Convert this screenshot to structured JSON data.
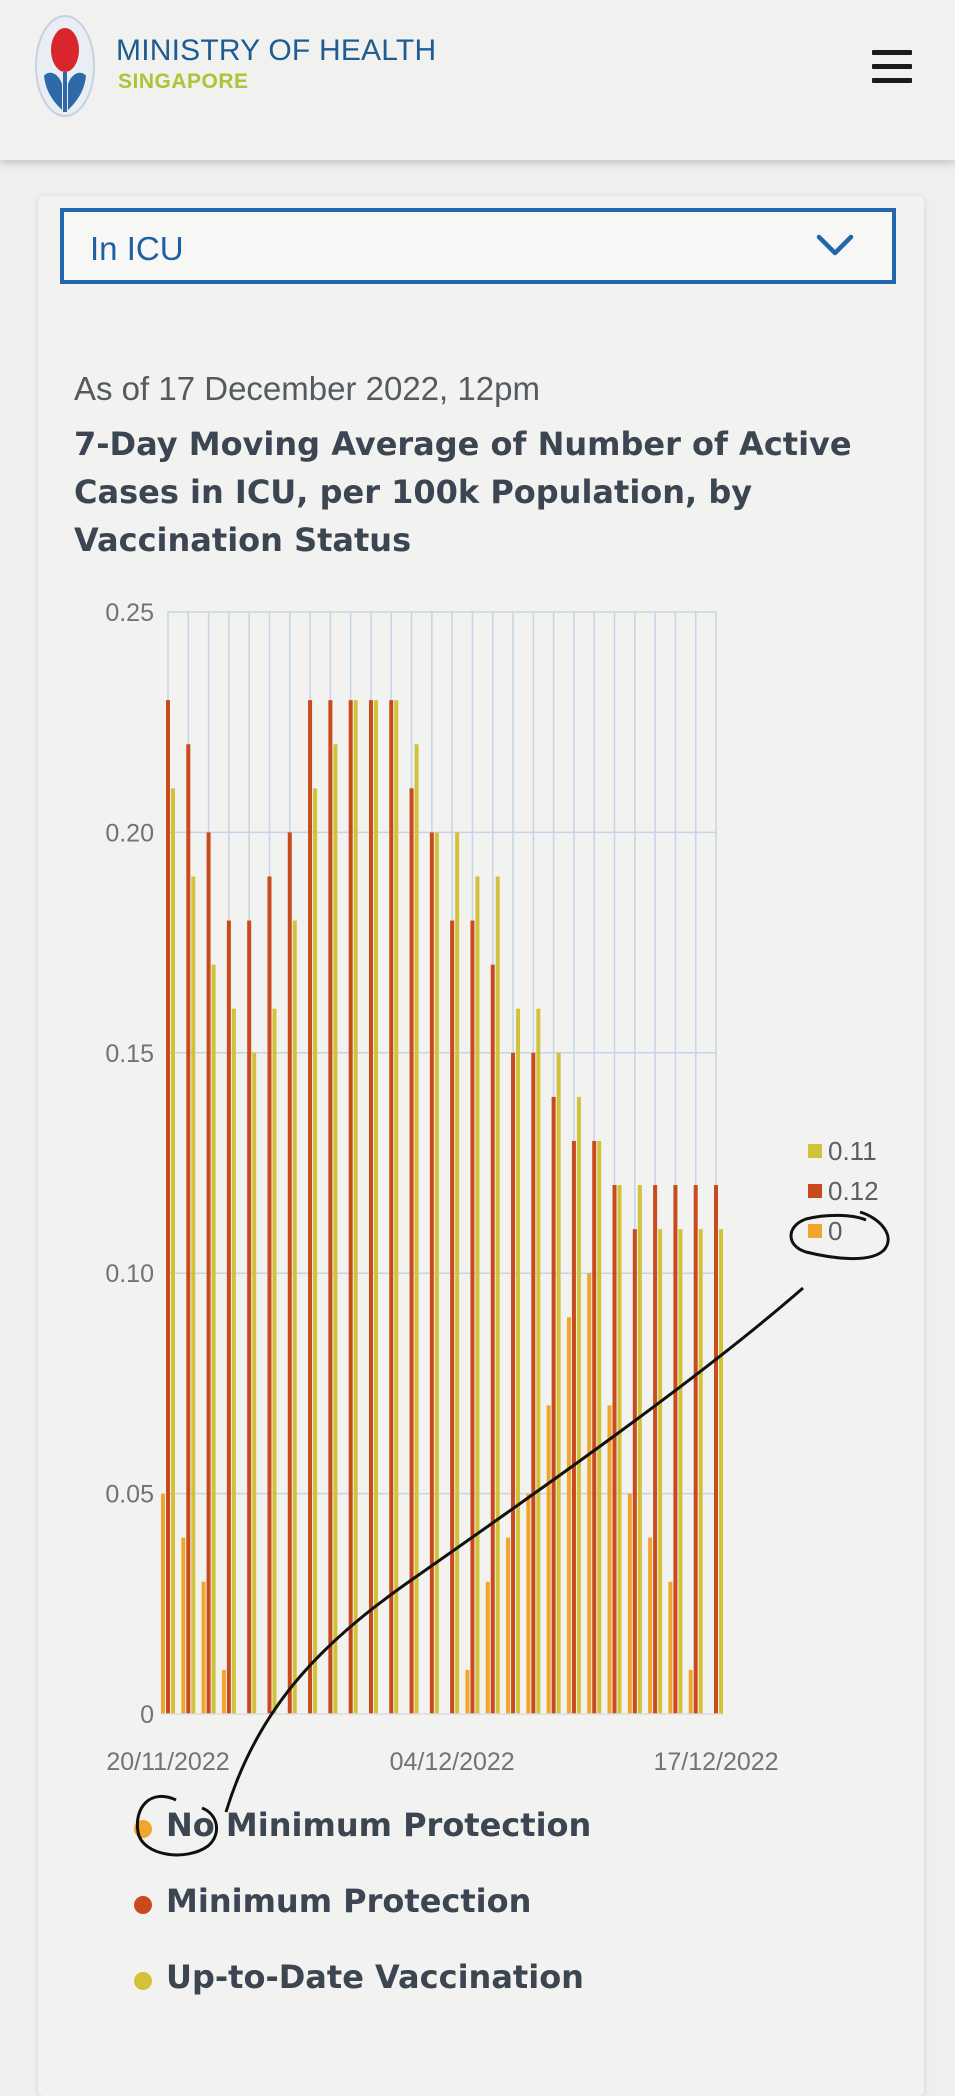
{
  "header": {
    "org_name": "MINISTRY OF HEALTH",
    "org_sub": "SINGAPORE",
    "menu_icon": "hamburger-menu-icon"
  },
  "selector": {
    "value": "In ICU",
    "icon": "chevron-down-icon"
  },
  "content": {
    "as_of": "As of 17 December 2022, 12pm"
  },
  "colors": {
    "brand_blue": "#1e5c92",
    "brand_green": "#a9c639",
    "no_min": "#f0a52c",
    "min": "#c94a1c",
    "utd": "#d1c23a"
  },
  "chart_data": {
    "type": "bar",
    "title": "7-Day Moving Average of Number of Active Cases in ICU, per 100k Population, by Vaccination Status",
    "y_ticks": [
      "0.25",
      "0.20",
      "0.15",
      "0.10",
      "0.05",
      "0"
    ],
    "ylim": [
      0,
      0.25
    ],
    "x_tick_labels": [
      "20/11/2022",
      "04/12/2022",
      "17/12/2022"
    ],
    "x": [
      "20/11/2022",
      "21/11/2022",
      "22/11/2022",
      "23/11/2022",
      "24/11/2022",
      "25/11/2022",
      "26/11/2022",
      "27/11/2022",
      "28/11/2022",
      "29/11/2022",
      "30/11/2022",
      "01/12/2022",
      "02/12/2022",
      "03/12/2022",
      "04/12/2022",
      "05/12/2022",
      "06/12/2022",
      "07/12/2022",
      "08/12/2022",
      "09/12/2022",
      "10/12/2022",
      "11/12/2022",
      "12/12/2022",
      "13/12/2022",
      "14/12/2022",
      "15/12/2022",
      "16/12/2022",
      "17/12/2022"
    ],
    "grid": true,
    "series": [
      {
        "name": "No Minimum Protection",
        "color": "#f0a52c",
        "values": [
          0.05,
          0.04,
          0.03,
          0.01,
          0.0,
          0.0,
          0.0,
          0.0,
          0.0,
          0.0,
          0.0,
          0.0,
          0.0,
          0.0,
          0.0,
          0.01,
          0.03,
          0.04,
          0.05,
          0.07,
          0.09,
          0.1,
          0.07,
          0.05,
          0.04,
          0.03,
          0.01,
          0.0
        ]
      },
      {
        "name": "Minimum Protection",
        "color": "#c94a1c",
        "values": [
          0.23,
          0.22,
          0.2,
          0.18,
          0.18,
          0.19,
          0.2,
          0.23,
          0.23,
          0.23,
          0.23,
          0.23,
          0.21,
          0.2,
          0.18,
          0.18,
          0.17,
          0.15,
          0.15,
          0.14,
          0.13,
          0.13,
          0.12,
          0.11,
          0.12,
          0.12,
          0.12,
          0.12
        ]
      },
      {
        "name": "Up-to-Date Vaccination",
        "color": "#d1c23a",
        "values": [
          0.21,
          0.19,
          0.17,
          0.16,
          0.15,
          0.16,
          0.18,
          0.21,
          0.22,
          0.23,
          0.23,
          0.23,
          0.22,
          0.2,
          0.2,
          0.19,
          0.19,
          0.16,
          0.16,
          0.15,
          0.14,
          0.13,
          0.12,
          0.12,
          0.11,
          0.11,
          0.11,
          0.11
        ]
      }
    ],
    "tooltip": [
      {
        "series": "Up-to-Date Vaccination",
        "value": "0.11",
        "color": "#d1c23a"
      },
      {
        "series": "Minimum Protection",
        "value": "0.12",
        "color": "#c94a1c"
      },
      {
        "series": "No Minimum Protection",
        "value": "0",
        "color": "#f0a52c"
      }
    ],
    "legend_position": "bottom-left"
  },
  "legend": [
    {
      "label": "No Minimum Protection",
      "color": "#f0a52c"
    },
    {
      "label": "Minimum Protection",
      "color": "#c94a1c"
    },
    {
      "label": "Up-to-Date Vaccination",
      "color": "#d1c23a"
    }
  ]
}
